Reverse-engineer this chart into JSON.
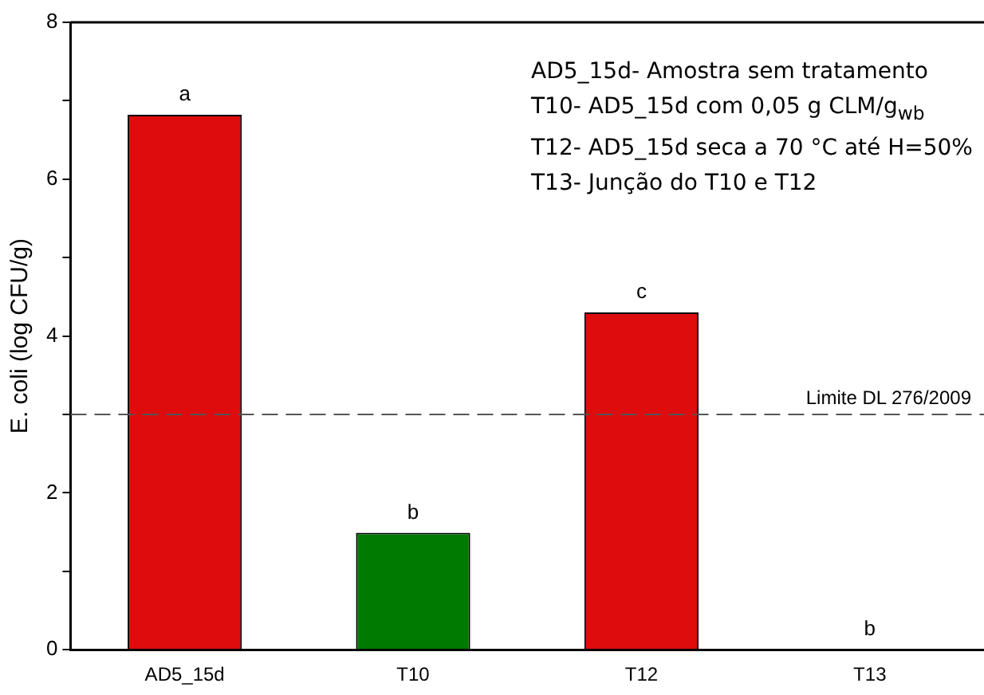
{
  "chart_data": {
    "type": "bar",
    "ylabel": "E. coli (log CFU/g)",
    "categories": [
      "AD5_15d",
      "T10",
      "T12",
      "T13"
    ],
    "values": [
      6.82,
      1.49,
      4.3,
      0
    ],
    "colors": [
      "#de0c0c",
      "#007a00",
      "#de0c0c",
      "#de0c0c"
    ],
    "value_labels": [
      "a",
      "b",
      "c",
      "b"
    ],
    "ylim": [
      0,
      8
    ],
    "yticks": [
      0,
      {
        "value": 1,
        "label": null
      },
      2,
      {
        "value": 3,
        "label": null
      },
      4,
      {
        "value": 5,
        "label": null
      },
      6,
      {
        "value": 7,
        "label": null
      },
      8
    ],
    "ref_lines": [
      {
        "axis": "y",
        "value": 3,
        "label": "Limite DL 276/2009",
        "color": "#555555",
        "line_style": "dashed"
      }
    ],
    "annotations": [
      "AD5_15d- Amostra sem tratamento",
      "T10- AD5_15d com 0,05 g CLM/g$_{wb}$",
      "T12- AD5_15d seca a 70 °C até H=50%",
      "T13- Junção do T10 e T12"
    ],
    "grid": false,
    "legend": false
  }
}
